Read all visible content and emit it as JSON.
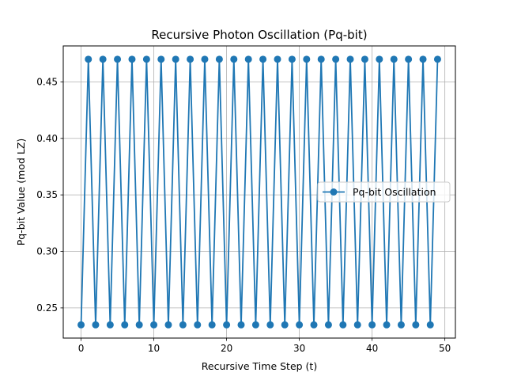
{
  "chart_data": {
    "type": "line",
    "title": "Recursive Photon Oscillation (Pq-bit)",
    "xlabel": "Recursive Time Step (t)",
    "ylabel": "Pq-bit Value (mod LZ)",
    "xlim": [
      -2.45,
      51.45
    ],
    "ylim": [
      0.2233,
      0.4818
    ],
    "xticks": [
      0,
      10,
      20,
      30,
      40,
      50
    ],
    "yticks": [
      0.25,
      0.3,
      0.35,
      0.4,
      0.45
    ],
    "xtick_labels": [
      "0",
      "10",
      "20",
      "30",
      "40",
      "50"
    ],
    "ytick_labels": [
      "0.25",
      "0.30",
      "0.35",
      "0.40",
      "0.45"
    ],
    "grid": true,
    "legend_position": "center-right",
    "series": [
      {
        "name": "Pq-bit Oscillation",
        "color": "#1f77b4",
        "marker": "circle",
        "x": [
          0,
          1,
          2,
          3,
          4,
          5,
          6,
          7,
          8,
          9,
          10,
          11,
          12,
          13,
          14,
          15,
          16,
          17,
          18,
          19,
          20,
          21,
          22,
          23,
          24,
          25,
          26,
          27,
          28,
          29,
          30,
          31,
          32,
          33,
          34,
          35,
          36,
          37,
          38,
          39,
          40,
          41,
          42,
          43,
          44,
          45,
          46,
          47,
          48,
          49
        ],
        "y": [
          0.235,
          0.47,
          0.235,
          0.47,
          0.235,
          0.47,
          0.235,
          0.47,
          0.235,
          0.47,
          0.235,
          0.47,
          0.235,
          0.47,
          0.235,
          0.47,
          0.235,
          0.47,
          0.235,
          0.47,
          0.235,
          0.47,
          0.235,
          0.47,
          0.235,
          0.47,
          0.235,
          0.47,
          0.235,
          0.47,
          0.235,
          0.47,
          0.235,
          0.47,
          0.235,
          0.47,
          0.235,
          0.47,
          0.235,
          0.47,
          0.235,
          0.47,
          0.235,
          0.47,
          0.235,
          0.47,
          0.235,
          0.47,
          0.235,
          0.47
        ]
      }
    ]
  }
}
